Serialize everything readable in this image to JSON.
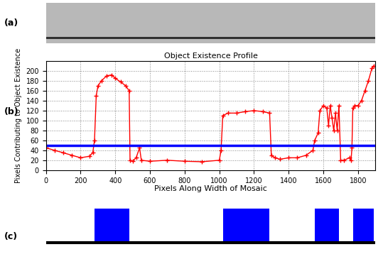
{
  "panel_labels": [
    "(a)",
    "(b)",
    "(c)"
  ],
  "chart_data": {
    "type": "line",
    "title": "Object Existence Profile",
    "x_label": "Pixels Along Width of Mosaic",
    "y_label": "Pixels Contributing to Object Existence",
    "x": [
      0,
      50,
      100,
      150,
      200,
      250,
      270,
      280,
      290,
      300,
      320,
      350,
      380,
      400,
      430,
      460,
      480,
      485,
      500,
      520,
      540,
      550,
      600,
      700,
      800,
      900,
      1000,
      1010,
      1020,
      1050,
      1100,
      1150,
      1200,
      1250,
      1290,
      1300,
      1320,
      1350,
      1400,
      1450,
      1500,
      1540,
      1550,
      1570,
      1580,
      1600,
      1620,
      1630,
      1640,
      1650,
      1660,
      1670,
      1680,
      1690,
      1700,
      1720,
      1750,
      1760,
      1765,
      1770,
      1780,
      1800,
      1820,
      1840,
      1860,
      1880,
      1890
    ],
    "values": [
      45,
      40,
      35,
      30,
      25,
      28,
      35,
      60,
      150,
      170,
      180,
      190,
      192,
      185,
      178,
      170,
      160,
      20,
      18,
      25,
      45,
      20,
      18,
      20,
      18,
      17,
      20,
      40,
      110,
      115,
      115,
      118,
      120,
      118,
      115,
      30,
      25,
      22,
      25,
      25,
      30,
      40,
      60,
      75,
      120,
      130,
      125,
      90,
      130,
      105,
      80,
      115,
      80,
      130,
      20,
      20,
      25,
      20,
      45,
      125,
      130,
      130,
      140,
      160,
      180,
      205,
      210
    ],
    "color": "#ff0000",
    "marker": "+",
    "line_style": "solid",
    "threshold": 50,
    "threshold_color": "#0000ff",
    "region_color": "#0000ff",
    "xlim": [
      0,
      1900
    ],
    "ylim": [
      0,
      220
    ],
    "xticks": [
      0,
      200,
      400,
      600,
      800,
      1000,
      1200,
      1400,
      1600,
      1800
    ],
    "yticks": [
      0,
      20,
      40,
      60,
      80,
      100,
      120,
      140,
      160,
      180,
      200
    ],
    "grid": true
  }
}
